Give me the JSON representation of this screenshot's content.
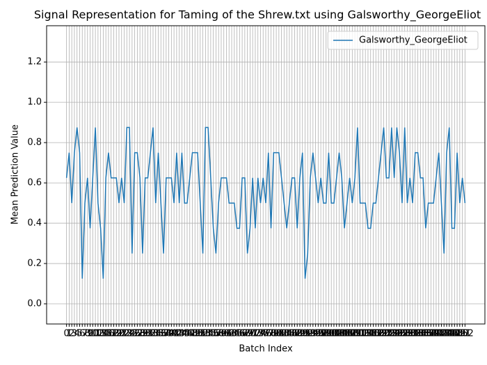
{
  "chart_data": {
    "type": "line",
    "title": "Signal Representation for Taming of the Shrew.txt using Galsworthy_GeorgeEliot",
    "x_label": "Batch Index",
    "y_label": "Mean Prediction Value",
    "categories": [
      "0",
      "1",
      "2",
      "3",
      "4",
      "5",
      "6",
      "7",
      "8",
      "9",
      "10",
      "11",
      "12",
      "13",
      "14",
      "15",
      "16",
      "17",
      "18",
      "19",
      "20",
      "21",
      "22",
      "23",
      "24",
      "25",
      "26",
      "27",
      "28",
      "29",
      "30",
      "31",
      "32",
      "33",
      "34",
      "35",
      "36",
      "37",
      "38",
      "39",
      "40",
      "41",
      "42",
      "43",
      "44",
      "45",
      "46",
      "47",
      "48",
      "49",
      "50",
      "51",
      "52",
      "53",
      "54",
      "55",
      "56",
      "57",
      "58",
      "59",
      "60",
      "61",
      "62",
      "63",
      "64",
      "65",
      "66",
      "67",
      "68",
      "69",
      "70",
      "71",
      "72",
      "73",
      "74",
      "75",
      "76",
      "77",
      "78",
      "79",
      "80",
      "81",
      "82",
      "83",
      "84",
      "85",
      "86",
      "87",
      "88",
      "89",
      "90",
      "91",
      "92",
      "93",
      "94",
      "95",
      "96",
      "97",
      "98",
      "99",
      "100",
      "101",
      "102",
      "103",
      "104",
      "105",
      "106",
      "107",
      "108",
      "109",
      "110",
      "111",
      "112",
      "113",
      "114",
      "115",
      "116",
      "117",
      "118",
      "119",
      "120",
      "121",
      "122",
      "123",
      "124",
      "125",
      "126",
      "127",
      "128",
      "129",
      "130",
      "131",
      "132",
      "133",
      "134",
      "135",
      "136",
      "137",
      "138",
      "139",
      "140",
      "141",
      "142",
      "143",
      "144",
      "145",
      "146",
      "147",
      "148",
      "149",
      "150",
      "151",
      "152"
    ],
    "series": [
      {
        "name": "Galsworthy_GeorgeEliot",
        "color": "#1f77b4",
        "values": [
          0.625,
          0.75,
          0.5,
          0.75,
          0.875,
          0.75,
          0.125,
          0.5,
          0.625,
          0.375,
          0.625,
          0.875,
          0.5,
          0.375,
          0.125,
          0.625,
          0.75,
          0.625,
          0.625,
          0.625,
          0.5,
          0.625,
          0.5,
          0.875,
          0.875,
          0.25,
          0.75,
          0.75,
          0.625,
          0.25,
          0.625,
          0.625,
          0.75,
          0.875,
          0.5,
          0.75,
          0.5,
          0.25,
          0.625,
          0.625,
          0.625,
          0.5,
          0.75,
          0.5,
          0.75,
          0.5,
          0.5,
          0.625,
          0.75,
          0.75,
          0.75,
          0.5,
          0.25,
          0.875,
          0.875,
          0.625,
          0.375,
          0.25,
          0.5,
          0.625,
          0.625,
          0.625,
          0.5,
          0.5,
          0.5,
          0.375,
          0.375,
          0.625,
          0.625,
          0.25,
          0.375,
          0.625,
          0.375,
          0.625,
          0.5,
          0.625,
          0.5,
          0.75,
          0.375,
          0.75,
          0.75,
          0.75,
          0.625,
          0.5,
          0.375,
          0.5,
          0.625,
          0.625,
          0.375,
          0.625,
          0.75,
          0.125,
          0.25,
          0.625,
          0.75,
          0.625,
          0.5,
          0.625,
          0.5,
          0.5,
          0.75,
          0.5,
          0.5,
          0.625,
          0.75,
          0.625,
          0.375,
          0.5,
          0.625,
          0.5,
          0.625,
          0.875,
          0.5,
          0.5,
          0.5,
          0.375,
          0.375,
          0.5,
          0.5,
          0.625,
          0.75,
          0.875,
          0.625,
          0.625,
          0.875,
          0.625,
          0.875,
          0.75,
          0.5,
          0.875,
          0.5,
          0.625,
          0.5,
          0.75,
          0.75,
          0.625,
          0.625,
          0.375,
          0.5,
          0.5,
          0.5,
          0.625,
          0.75,
          0.5,
          0.25,
          0.75,
          0.875,
          0.375,
          0.375,
          0.75,
          0.5,
          0.625,
          0.5
        ]
      }
    ],
    "ylim": [
      -0.1,
      1.38
    ],
    "yticks": [
      {
        "value": 0,
        "label": "0.0"
      },
      0.2,
      0.4,
      0.6,
      0.8,
      {
        "value": 1,
        "label": "1.0"
      },
      1.2
    ],
    "grid": true,
    "legend": "upper-right"
  }
}
